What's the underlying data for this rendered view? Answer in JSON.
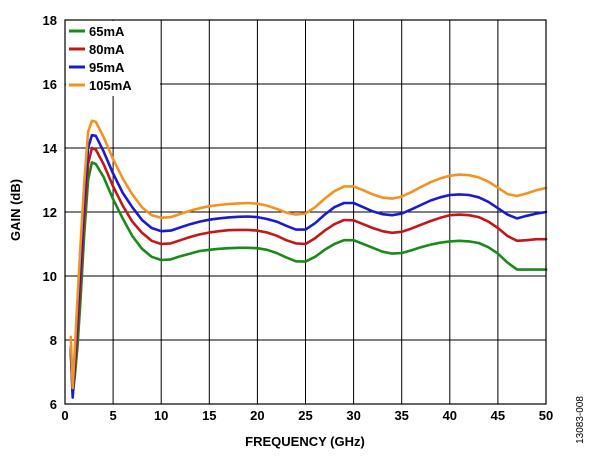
{
  "chart_data": {
    "type": "line",
    "xlabel": "FREQUENCY (GHz)",
    "ylabel": "GAIN (dB)",
    "xlim": [
      0,
      50
    ],
    "ylim": [
      6,
      18
    ],
    "xticks": [
      0,
      5,
      10,
      15,
      20,
      25,
      30,
      35,
      40,
      45,
      50
    ],
    "yticks": [
      6,
      8,
      10,
      12,
      14,
      16,
      18
    ],
    "grid": true,
    "legend_position": "top-left",
    "figure_id": "13083-008",
    "series": [
      {
        "name": "65mA",
        "color": "#1a8a1a",
        "points": [
          [
            0.6,
            7.8
          ],
          [
            0.8,
            6.3
          ],
          [
            1.0,
            6.8
          ],
          [
            1.3,
            7.8
          ],
          [
            1.6,
            9.2
          ],
          [
            2.0,
            11.3
          ],
          [
            2.4,
            13.0
          ],
          [
            2.8,
            13.55
          ],
          [
            3.2,
            13.5
          ],
          [
            4,
            13.1
          ],
          [
            5,
            12.4
          ],
          [
            6,
            11.8
          ],
          [
            7,
            11.25
          ],
          [
            8,
            10.85
          ],
          [
            9,
            10.6
          ],
          [
            10,
            10.5
          ],
          [
            11,
            10.52
          ],
          [
            12,
            10.62
          ],
          [
            13,
            10.7
          ],
          [
            14,
            10.78
          ],
          [
            15,
            10.82
          ],
          [
            16,
            10.85
          ],
          [
            17,
            10.87
          ],
          [
            18,
            10.88
          ],
          [
            19,
            10.88
          ],
          [
            20,
            10.87
          ],
          [
            21,
            10.82
          ],
          [
            22,
            10.72
          ],
          [
            23,
            10.58
          ],
          [
            24,
            10.46
          ],
          [
            25,
            10.45
          ],
          [
            26,
            10.6
          ],
          [
            27,
            10.82
          ],
          [
            28,
            11.0
          ],
          [
            29,
            11.12
          ],
          [
            30,
            11.12
          ],
          [
            31,
            11.0
          ],
          [
            32,
            10.88
          ],
          [
            33,
            10.76
          ],
          [
            34,
            10.7
          ],
          [
            35,
            10.72
          ],
          [
            36,
            10.8
          ],
          [
            37,
            10.9
          ],
          [
            38,
            10.98
          ],
          [
            39,
            11.04
          ],
          [
            40,
            11.08
          ],
          [
            41,
            11.1
          ],
          [
            42,
            11.08
          ],
          [
            43,
            11.03
          ],
          [
            44,
            10.9
          ],
          [
            45,
            10.7
          ],
          [
            46,
            10.42
          ],
          [
            47,
            10.2
          ],
          [
            48,
            10.2
          ],
          [
            49,
            10.2
          ],
          [
            50,
            10.2
          ]
        ]
      },
      {
        "name": "80mA",
        "color": "#c41818",
        "points": [
          [
            0.6,
            7.6
          ],
          [
            0.8,
            6.4
          ],
          [
            1.0,
            7.0
          ],
          [
            1.3,
            8.3
          ],
          [
            1.6,
            9.8
          ],
          [
            2.0,
            11.9
          ],
          [
            2.4,
            13.5
          ],
          [
            2.8,
            14.0
          ],
          [
            3.2,
            13.95
          ],
          [
            4,
            13.5
          ],
          [
            5,
            12.8
          ],
          [
            6,
            12.2
          ],
          [
            7,
            11.7
          ],
          [
            8,
            11.35
          ],
          [
            9,
            11.1
          ],
          [
            10,
            11.0
          ],
          [
            11,
            11.02
          ],
          [
            12,
            11.12
          ],
          [
            13,
            11.22
          ],
          [
            14,
            11.3
          ],
          [
            15,
            11.36
          ],
          [
            16,
            11.4
          ],
          [
            17,
            11.43
          ],
          [
            18,
            11.44
          ],
          [
            19,
            11.44
          ],
          [
            20,
            11.42
          ],
          [
            21,
            11.36
          ],
          [
            22,
            11.26
          ],
          [
            23,
            11.12
          ],
          [
            24,
            11.02
          ],
          [
            25,
            11.0
          ],
          [
            26,
            11.18
          ],
          [
            27,
            11.42
          ],
          [
            28,
            11.62
          ],
          [
            29,
            11.75
          ],
          [
            30,
            11.74
          ],
          [
            31,
            11.62
          ],
          [
            32,
            11.5
          ],
          [
            33,
            11.4
          ],
          [
            34,
            11.35
          ],
          [
            35,
            11.38
          ],
          [
            36,
            11.48
          ],
          [
            37,
            11.6
          ],
          [
            38,
            11.72
          ],
          [
            39,
            11.82
          ],
          [
            40,
            11.9
          ],
          [
            41,
            11.92
          ],
          [
            42,
            11.9
          ],
          [
            43,
            11.84
          ],
          [
            44,
            11.7
          ],
          [
            45,
            11.5
          ],
          [
            46,
            11.25
          ],
          [
            47,
            11.1
          ],
          [
            48,
            11.12
          ],
          [
            49,
            11.15
          ],
          [
            50,
            11.15
          ]
        ]
      },
      {
        "name": "95mA",
        "color": "#1a1ad2",
        "points": [
          [
            0.6,
            7.7
          ],
          [
            0.8,
            6.2
          ],
          [
            1.0,
            7.2
          ],
          [
            1.3,
            8.8
          ],
          [
            1.6,
            10.3
          ],
          [
            2.0,
            12.4
          ],
          [
            2.4,
            14.0
          ],
          [
            2.8,
            14.4
          ],
          [
            3.2,
            14.38
          ],
          [
            4,
            13.9
          ],
          [
            5,
            13.2
          ],
          [
            6,
            12.6
          ],
          [
            7,
            12.15
          ],
          [
            8,
            11.75
          ],
          [
            9,
            11.5
          ],
          [
            10,
            11.4
          ],
          [
            11,
            11.42
          ],
          [
            12,
            11.52
          ],
          [
            13,
            11.62
          ],
          [
            14,
            11.7
          ],
          [
            15,
            11.76
          ],
          [
            16,
            11.8
          ],
          [
            17,
            11.83
          ],
          [
            18,
            11.85
          ],
          [
            19,
            11.86
          ],
          [
            20,
            11.84
          ],
          [
            21,
            11.78
          ],
          [
            22,
            11.7
          ],
          [
            23,
            11.57
          ],
          [
            24,
            11.45
          ],
          [
            25,
            11.45
          ],
          [
            26,
            11.65
          ],
          [
            27,
            11.92
          ],
          [
            28,
            12.15
          ],
          [
            29,
            12.28
          ],
          [
            30,
            12.28
          ],
          [
            31,
            12.15
          ],
          [
            32,
            12.02
          ],
          [
            33,
            11.93
          ],
          [
            34,
            11.9
          ],
          [
            35,
            11.95
          ],
          [
            36,
            12.08
          ],
          [
            37,
            12.22
          ],
          [
            38,
            12.36
          ],
          [
            39,
            12.46
          ],
          [
            40,
            12.53
          ],
          [
            41,
            12.55
          ],
          [
            42,
            12.53
          ],
          [
            43,
            12.46
          ],
          [
            44,
            12.32
          ],
          [
            45,
            12.12
          ],
          [
            46,
            11.92
          ],
          [
            47,
            11.8
          ],
          [
            48,
            11.88
          ],
          [
            49,
            11.95
          ],
          [
            50,
            12.0
          ]
        ]
      },
      {
        "name": "105mA",
        "color": "#f5921e",
        "points": [
          [
            0.6,
            8.1
          ],
          [
            0.8,
            6.5
          ],
          [
            1.0,
            7.6
          ],
          [
            1.3,
            9.3
          ],
          [
            1.6,
            10.9
          ],
          [
            2.0,
            12.9
          ],
          [
            2.4,
            14.5
          ],
          [
            2.8,
            14.85
          ],
          [
            3.2,
            14.82
          ],
          [
            4,
            14.35
          ],
          [
            5,
            13.65
          ],
          [
            6,
            13.05
          ],
          [
            7,
            12.55
          ],
          [
            8,
            12.15
          ],
          [
            9,
            11.9
          ],
          [
            10,
            11.82
          ],
          [
            11,
            11.84
          ],
          [
            12,
            11.94
          ],
          [
            13,
            12.04
          ],
          [
            14,
            12.12
          ],
          [
            15,
            12.18
          ],
          [
            16,
            12.22
          ],
          [
            17,
            12.25
          ],
          [
            18,
            12.27
          ],
          [
            19,
            12.28
          ],
          [
            20,
            12.26
          ],
          [
            21,
            12.2
          ],
          [
            22,
            12.1
          ],
          [
            23,
            11.98
          ],
          [
            24,
            11.92
          ],
          [
            25,
            11.95
          ],
          [
            26,
            12.15
          ],
          [
            27,
            12.42
          ],
          [
            28,
            12.65
          ],
          [
            29,
            12.8
          ],
          [
            30,
            12.8
          ],
          [
            31,
            12.68
          ],
          [
            32,
            12.55
          ],
          [
            33,
            12.45
          ],
          [
            34,
            12.42
          ],
          [
            35,
            12.48
          ],
          [
            36,
            12.62
          ],
          [
            37,
            12.78
          ],
          [
            38,
            12.93
          ],
          [
            39,
            13.05
          ],
          [
            40,
            13.13
          ],
          [
            41,
            13.17
          ],
          [
            42,
            13.15
          ],
          [
            43,
            13.08
          ],
          [
            44,
            12.95
          ],
          [
            45,
            12.76
          ],
          [
            46,
            12.56
          ],
          [
            47,
            12.5
          ],
          [
            48,
            12.58
          ],
          [
            49,
            12.68
          ],
          [
            50,
            12.75
          ]
        ]
      }
    ]
  }
}
